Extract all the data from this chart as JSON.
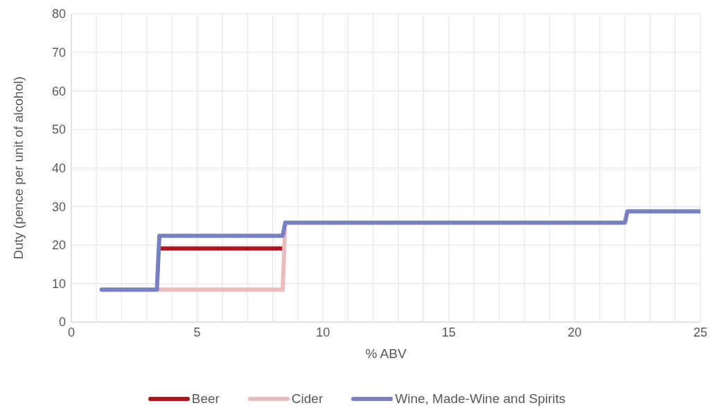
{
  "chart_data": {
    "type": "line",
    "xlabel": "% ABV",
    "ylabel": "Duty (pence per unit of alcohol)",
    "xlim": [
      0,
      25
    ],
    "ylim": [
      0,
      80
    ],
    "xticks": [
      0,
      {
        "value": 1,
        "label": null
      },
      {
        "value": 2,
        "label": null
      },
      {
        "value": 3,
        "label": null
      },
      {
        "value": 4,
        "label": null
      },
      5,
      {
        "value": 6,
        "label": null
      },
      {
        "value": 7,
        "label": null
      },
      {
        "value": 8,
        "label": null
      },
      {
        "value": 9,
        "label": null
      },
      10,
      {
        "value": 11,
        "label": null
      },
      {
        "value": 12,
        "label": null
      },
      {
        "value": 13,
        "label": null
      },
      {
        "value": 14,
        "label": null
      },
      15,
      {
        "value": 16,
        "label": null
      },
      {
        "value": 17,
        "label": null
      },
      {
        "value": 18,
        "label": null
      },
      {
        "value": 19,
        "label": null
      },
      20,
      {
        "value": 21,
        "label": null
      },
      {
        "value": 22,
        "label": null
      },
      {
        "value": 23,
        "label": null
      },
      {
        "value": 24,
        "label": null
      },
      25
    ],
    "yticks": [
      0,
      10,
      20,
      30,
      40,
      50,
      60,
      70,
      80
    ],
    "grid": true,
    "legend": "bottom",
    "marker": "none",
    "line_style": "solid",
    "series": [
      {
        "name": "Beer",
        "color": "#b0141c",
        "x": [
          3.5,
          8.4
        ],
        "values": [
          19.1,
          19.1
        ]
      },
      {
        "name": "Cider",
        "color": "#ebbcbf",
        "x": [
          1.2,
          8.4,
          8.5
        ],
        "values": [
          8.4,
          8.4,
          25.8
        ]
      },
      {
        "name": "Wine, Made-Wine and Spirits",
        "color": "#7780c0",
        "x": [
          1.2,
          3.4,
          3.5,
          8.4,
          8.5,
          22,
          22.1,
          25
        ],
        "values": [
          8.4,
          8.4,
          22.4,
          22.4,
          25.8,
          25.8,
          28.7,
          28.7
        ]
      }
    ]
  }
}
